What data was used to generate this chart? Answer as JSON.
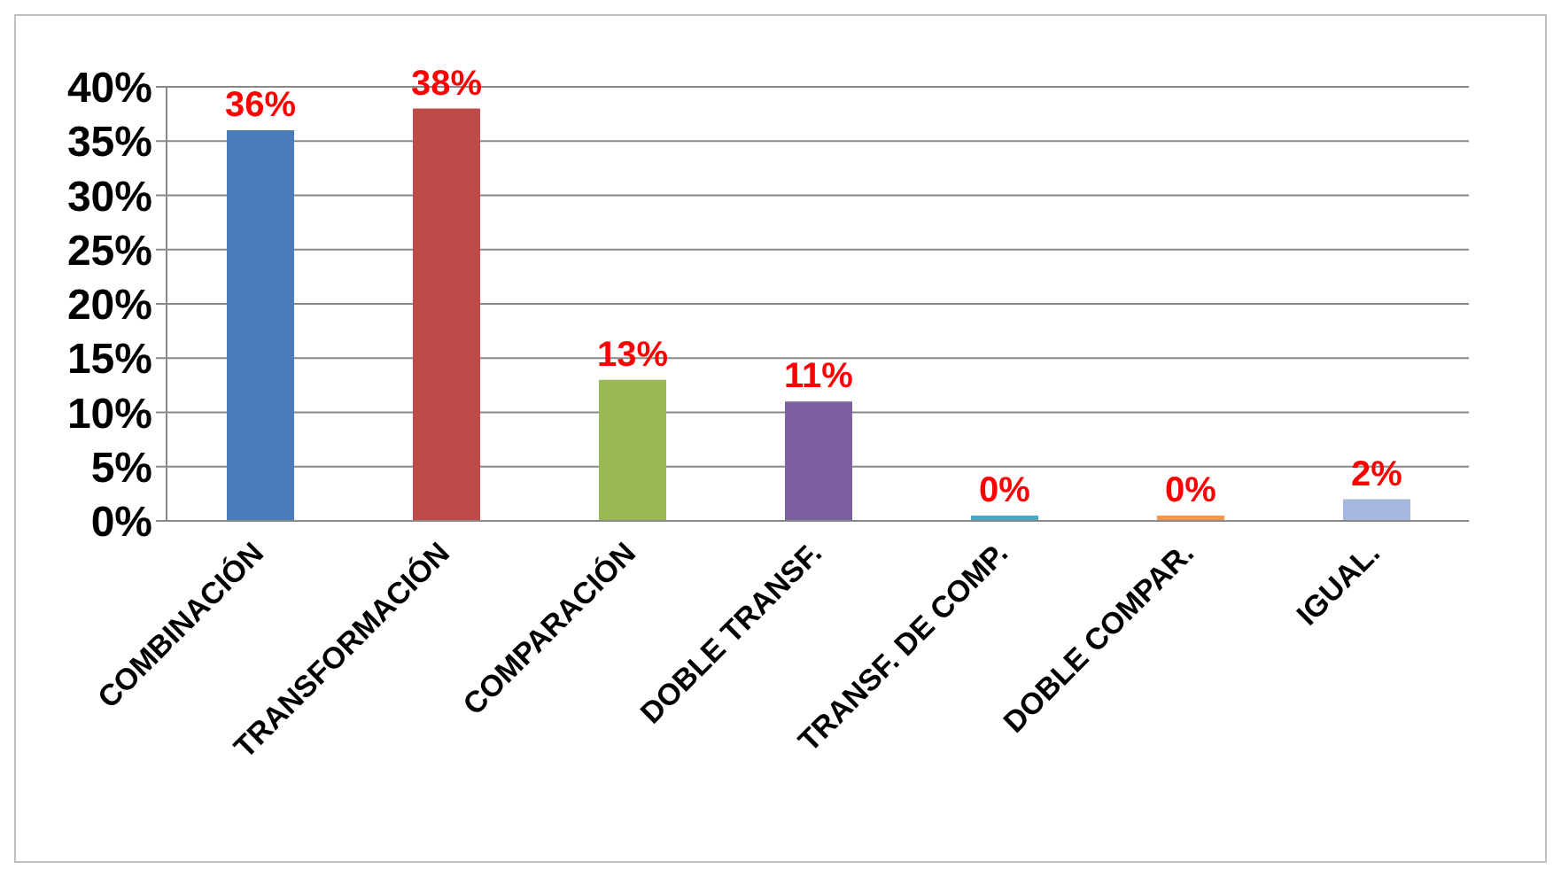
{
  "chart_data": {
    "type": "bar",
    "categories": [
      "COMBINACIÓN",
      "TRANSFORMACIÓN",
      "COMPARACIÓN",
      "DOBLE TRANSF.",
      "TRANSF. DE COMP.",
      "DOBLE COMPAR.",
      "IGUAL."
    ],
    "values": [
      36,
      38,
      13,
      11,
      0,
      0,
      2
    ],
    "colors": [
      "#4a7ebb",
      "#be4b48",
      "#98b954",
      "#7d60a0",
      "#46aac5",
      "#f79646",
      "#a5b9e0"
    ],
    "value_labels": [
      "36%",
      "38%",
      "13%",
      "11%",
      "0%",
      "0%",
      "2%"
    ],
    "ylim": [
      0,
      40
    ],
    "yticks": [
      {
        "value": 0,
        "label": "0%"
      },
      {
        "value": 5,
        "label": "5%"
      },
      {
        "value": 10,
        "label": "10%"
      },
      {
        "value": 15,
        "label": "15%"
      },
      {
        "value": 20,
        "label": "20%"
      },
      {
        "value": 25,
        "label": "25%"
      },
      {
        "value": 30,
        "label": "30%"
      },
      {
        "value": 35,
        "label": "35%"
      },
      {
        "value": 40,
        "label": "40%"
      }
    ],
    "grid": "y",
    "legend": false
  }
}
